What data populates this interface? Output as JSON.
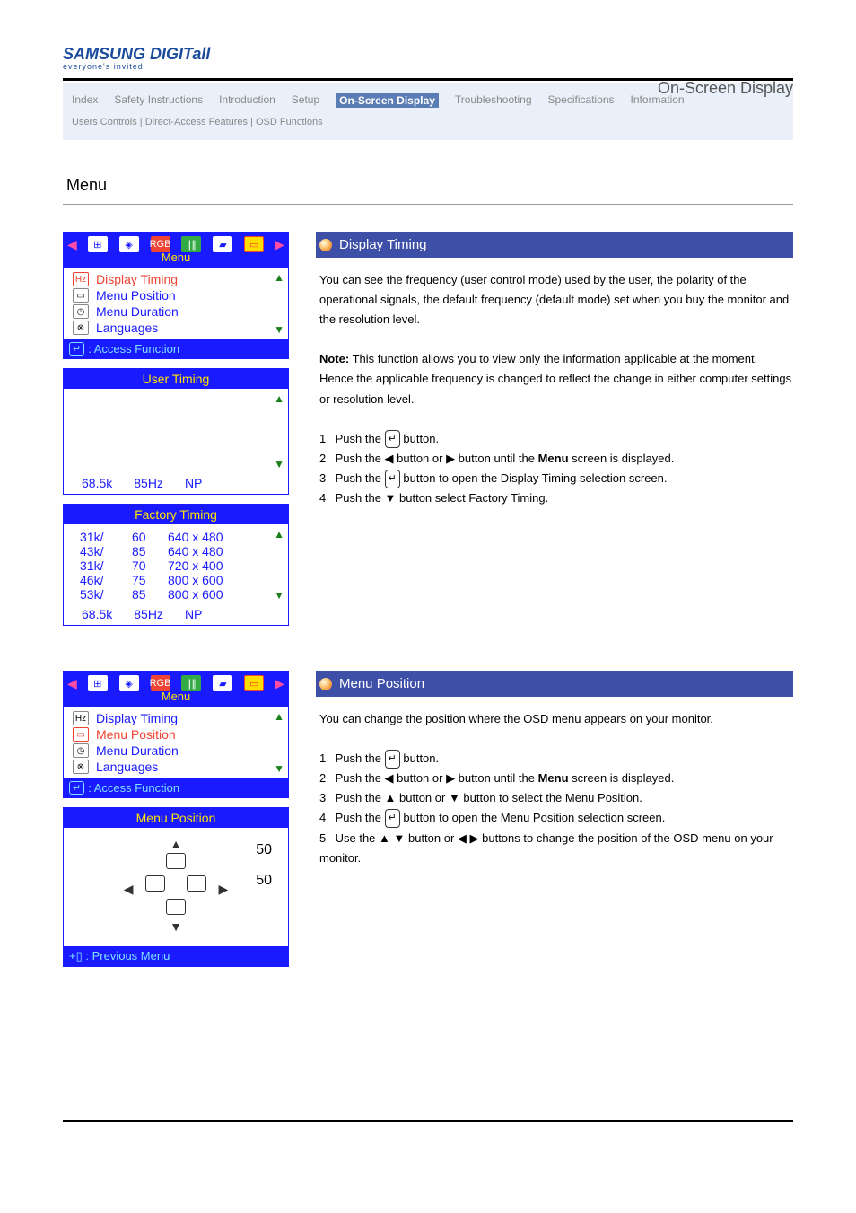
{
  "header": {
    "brand": "SAMSUNG DIGITall",
    "tagline": "everyone's invited",
    "right_label": "On-Screen Display"
  },
  "nav": {
    "tabs": [
      "Index",
      "Safety Instructions",
      "Introduction",
      "Setup",
      "On-Screen Display",
      "Troubleshooting",
      "Specifications",
      "Information"
    ],
    "sub": "Users Controls | Direct-Access Features | OSD Functions"
  },
  "section_title": "Menu",
  "osd": {
    "menu_label": "Menu",
    "items": [
      "Display Timing",
      "Menu Position",
      "Menu Duration",
      "Languages"
    ],
    "icon_text": [
      "Hz",
      "▭",
      "◷",
      "⊗"
    ],
    "access_label": "Access Function",
    "previous_label": "Previous Menu"
  },
  "user_timing": {
    "title": "User Timing",
    "status": {
      "khz": "68.5k",
      "hz": "85Hz",
      "pol": "NP"
    }
  },
  "factory_timing": {
    "title": "Factory Timing",
    "rows": [
      {
        "khz": "31k/",
        "hz": "60",
        "res": "640 x 480"
      },
      {
        "khz": "43k/",
        "hz": "85",
        "res": "640 x 480"
      },
      {
        "khz": "31k/",
        "hz": "70",
        "res": "720 x 400"
      },
      {
        "khz": "46k/",
        "hz": "75",
        "res": "800 x 600"
      },
      {
        "khz": "53k/",
        "hz": "85",
        "res": "800 x 600"
      }
    ],
    "status": {
      "khz": "68.5k",
      "hz": "85Hz",
      "pol": "NP"
    }
  },
  "menu_position": {
    "title": "Menu Position",
    "val1": "50",
    "val2": "50"
  },
  "display_timing_desc": {
    "title": "Display Timing",
    "intro": "You can see the frequency (user control mode) used by the user, the polarity of the operational signals, the default frequency (default mode) set when you buy the monitor and the resolution level.",
    "note_label": "Note:",
    "note": "This function allows you to view only the information applicable at the moment. Hence the applicable frequency is changed to reflect the change in either computer settings or resolution level.",
    "steps": [
      "Push the         button.",
      "Push the    ◀    button or    ▶    button until the Menu screen is displayed.",
      "Push the         button to open the Display Timing selection screen.",
      "Push the    ▼    button select Factory Timing."
    ]
  },
  "menu_position_desc": {
    "title": "Menu Position",
    "intro": "You can change the position where the OSD menu appears on your monitor.",
    "steps": [
      "Push the         button.",
      "Push the    ◀    button or    ▶    button until the Menu screen is displayed.",
      "Push the    ▲    button or    ▼    button to select the Menu Position.",
      "Push the         button to open the Menu Position selection screen.",
      "Use the    ▲ ▼    button or    ◀ ▶    buttons to change the position of the OSD menu on your monitor."
    ]
  },
  "colors": {
    "osd_blue": "#1a1aff",
    "osd_yellow": "#ffe400",
    "desc_header": "#3d4fa6",
    "accent_red": "#e43"
  }
}
